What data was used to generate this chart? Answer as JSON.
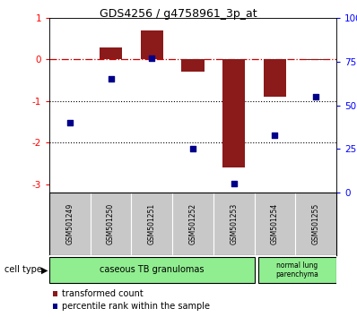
{
  "title": "GDS4256 / g4758961_3p_at",
  "samples": [
    "GSM501249",
    "GSM501250",
    "GSM501251",
    "GSM501252",
    "GSM501253",
    "GSM501254",
    "GSM501255"
  ],
  "bar_values": [
    0.0,
    0.3,
    0.7,
    -0.3,
    -2.6,
    -0.9,
    -0.02
  ],
  "dot_percentiles": [
    40,
    65,
    77,
    25,
    5,
    33,
    55
  ],
  "ylim_left": [
    -3.2,
    1.0
  ],
  "ylim_right": [
    0,
    100
  ],
  "yticks_left": [
    -3,
    -2,
    -1,
    0,
    1
  ],
  "yticks_right": [
    0,
    25,
    50,
    75,
    100
  ],
  "ytick_labels_right": [
    "0",
    "25",
    "50",
    "75",
    "100%"
  ],
  "hline_y": 0.0,
  "dotted_lines": [
    -1,
    -2
  ],
  "bar_color": "#8B1A1A",
  "dot_color": "#00008B",
  "hline_color": "#CC0000",
  "legend_bar_label": "transformed count",
  "legend_dot_label": "percentile rank within the sample",
  "cell_type_label": "cell type",
  "group1_label": "caseous TB granulomas",
  "group2_label": "normal lung\nparenchyma",
  "group1_count": 5,
  "group2_count": 2,
  "group_color": "#90EE90",
  "tick_area_bg": "#c8c8c8",
  "plot_bg_color": "#ffffff"
}
